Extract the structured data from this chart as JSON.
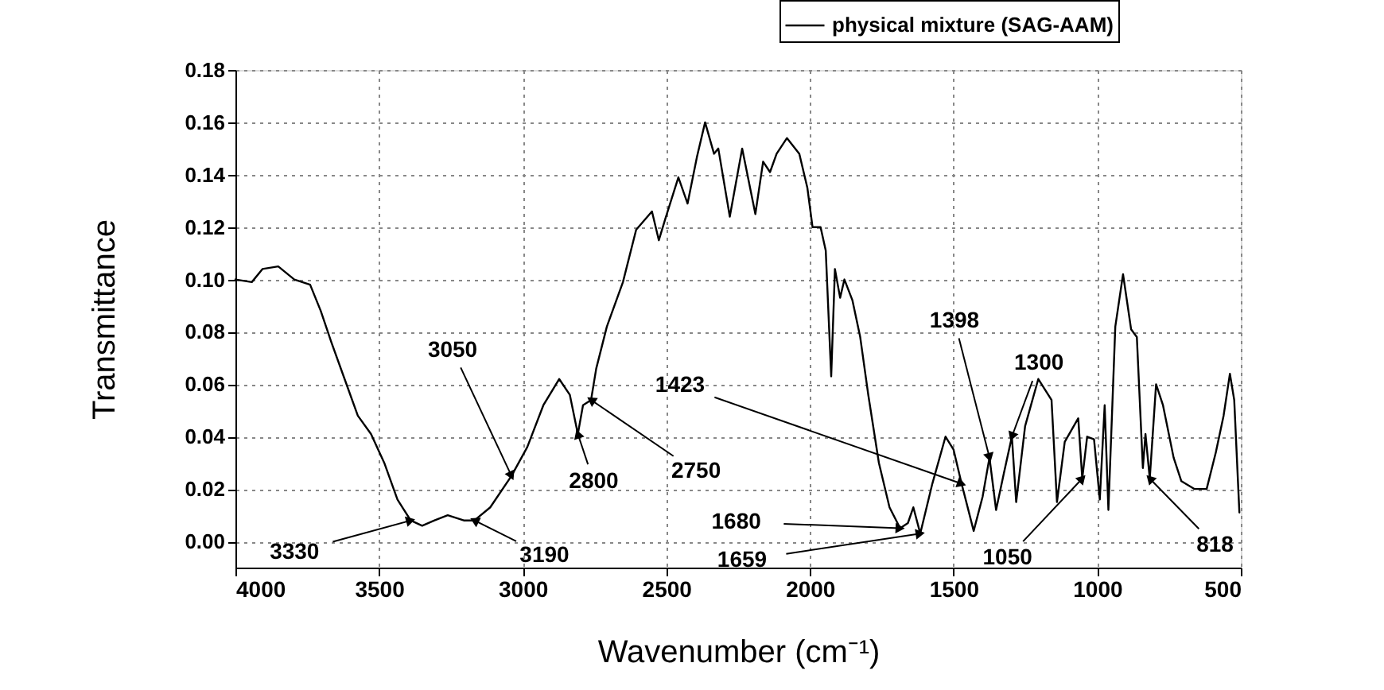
{
  "chart_data": {
    "type": "line",
    "xlabel": "Wavenumber (cm⁻¹)",
    "ylabel": "Transmittance",
    "xlim": [
      4000,
      500
    ],
    "xticks": [
      4000,
      3500,
      3000,
      2500,
      2000,
      1500,
      1000,
      500
    ],
    "ylim": [
      -0.01,
      0.18
    ],
    "yticks": [
      {
        "value": 0,
        "label": "0.00"
      },
      0.02,
      0.04,
      0.06,
      0.08,
      {
        "value": 0.1,
        "label": "0.10"
      },
      0.12,
      0.14,
      0.16,
      0.18
    ],
    "grid": true,
    "legend": "top right",
    "line_style": "solid",
    "marker": "none",
    "series": [
      {
        "name": "physical mixture (SAG-AAM)",
        "color": "#000000",
        "x": [
          4000,
          3943,
          3906,
          3851,
          3795,
          3740,
          3703,
          3666,
          3620,
          3574,
          3528,
          3482,
          3436,
          3390,
          3350,
          3307,
          3261,
          3205,
          3168,
          3113,
          3039,
          2984,
          2928,
          2873,
          2836,
          2808,
          2790,
          2762,
          2744,
          2707,
          2651,
          2605,
          2550,
          2526,
          2504,
          2458,
          2426,
          2393,
          2365,
          2334,
          2319,
          2279,
          2236,
          2190,
          2163,
          2139,
          2116,
          2080,
          2037,
          2009,
          1991,
          1963,
          1945,
          1926,
          1913,
          1895,
          1880,
          1852,
          1825,
          1797,
          1760,
          1723,
          1686,
          1659,
          1640,
          1616,
          1574,
          1528,
          1500,
          1472,
          1430,
          1399,
          1375,
          1352,
          1325,
          1297,
          1282,
          1251,
          1205,
          1159,
          1140,
          1113,
          1066,
          1052,
          1035,
          1011,
          991,
          974,
          961,
          937,
          910,
          882,
          862,
          841,
          832,
          817,
          795,
          771,
          734,
          707,
          661,
          619,
          587,
          560,
          538,
          523,
          505
        ],
        "values": [
          0.1,
          0.099,
          0.104,
          0.105,
          0.1,
          0.098,
          0.088,
          0.076,
          0.062,
          0.048,
          0.041,
          0.03,
          0.016,
          0.008,
          0.006,
          0.008,
          0.01,
          0.008,
          0.008,
          0.013,
          0.025,
          0.036,
          0.052,
          0.062,
          0.056,
          0.041,
          0.052,
          0.054,
          0.066,
          0.082,
          0.099,
          0.119,
          0.126,
          0.115,
          0.123,
          0.139,
          0.129,
          0.147,
          0.16,
          0.148,
          0.15,
          0.124,
          0.15,
          0.125,
          0.145,
          0.141,
          0.148,
          0.154,
          0.148,
          0.135,
          0.12,
          0.12,
          0.111,
          0.063,
          0.104,
          0.093,
          0.1,
          0.092,
          0.078,
          0.056,
          0.03,
          0.013,
          0.005,
          0.007,
          0.013,
          0.003,
          0.022,
          0.04,
          0.035,
          0.022,
          0.004,
          0.017,
          0.032,
          0.012,
          0.026,
          0.04,
          0.015,
          0.044,
          0.062,
          0.054,
          0.015,
          0.038,
          0.047,
          0.024,
          0.04,
          0.039,
          0.016,
          0.052,
          0.012,
          0.082,
          0.102,
          0.081,
          0.078,
          0.028,
          0.041,
          0.024,
          0.06,
          0.052,
          0.032,
          0.023,
          0.02,
          0.02,
          0.034,
          0.048,
          0.064,
          0.054,
          0.011
        ]
      }
    ],
    "annotations": [
      {
        "text": "3330",
        "x": 3390,
        "y": 0.008
      },
      {
        "text": "3190",
        "x": 3168,
        "y": 0.008
      },
      {
        "text": "3050",
        "x": 3039,
        "y": 0.025
      },
      {
        "text": "2800",
        "x": 2808,
        "y": 0.041
      },
      {
        "text": "2750",
        "x": 2762,
        "y": 0.054
      },
      {
        "text": "1680",
        "x": 1686,
        "y": 0.005
      },
      {
        "text": "1659",
        "x": 1616,
        "y": 0.003
      },
      {
        "text": "1423",
        "x": 1472,
        "y": 0.022
      },
      {
        "text": "1398",
        "x": 1375,
        "y": 0.032
      },
      {
        "text": "1300",
        "x": 1297,
        "y": 0.04
      },
      {
        "text": "1050",
        "x": 1052,
        "y": 0.024
      },
      {
        "text": "818",
        "x": 817,
        "y": 0.024
      }
    ]
  }
}
